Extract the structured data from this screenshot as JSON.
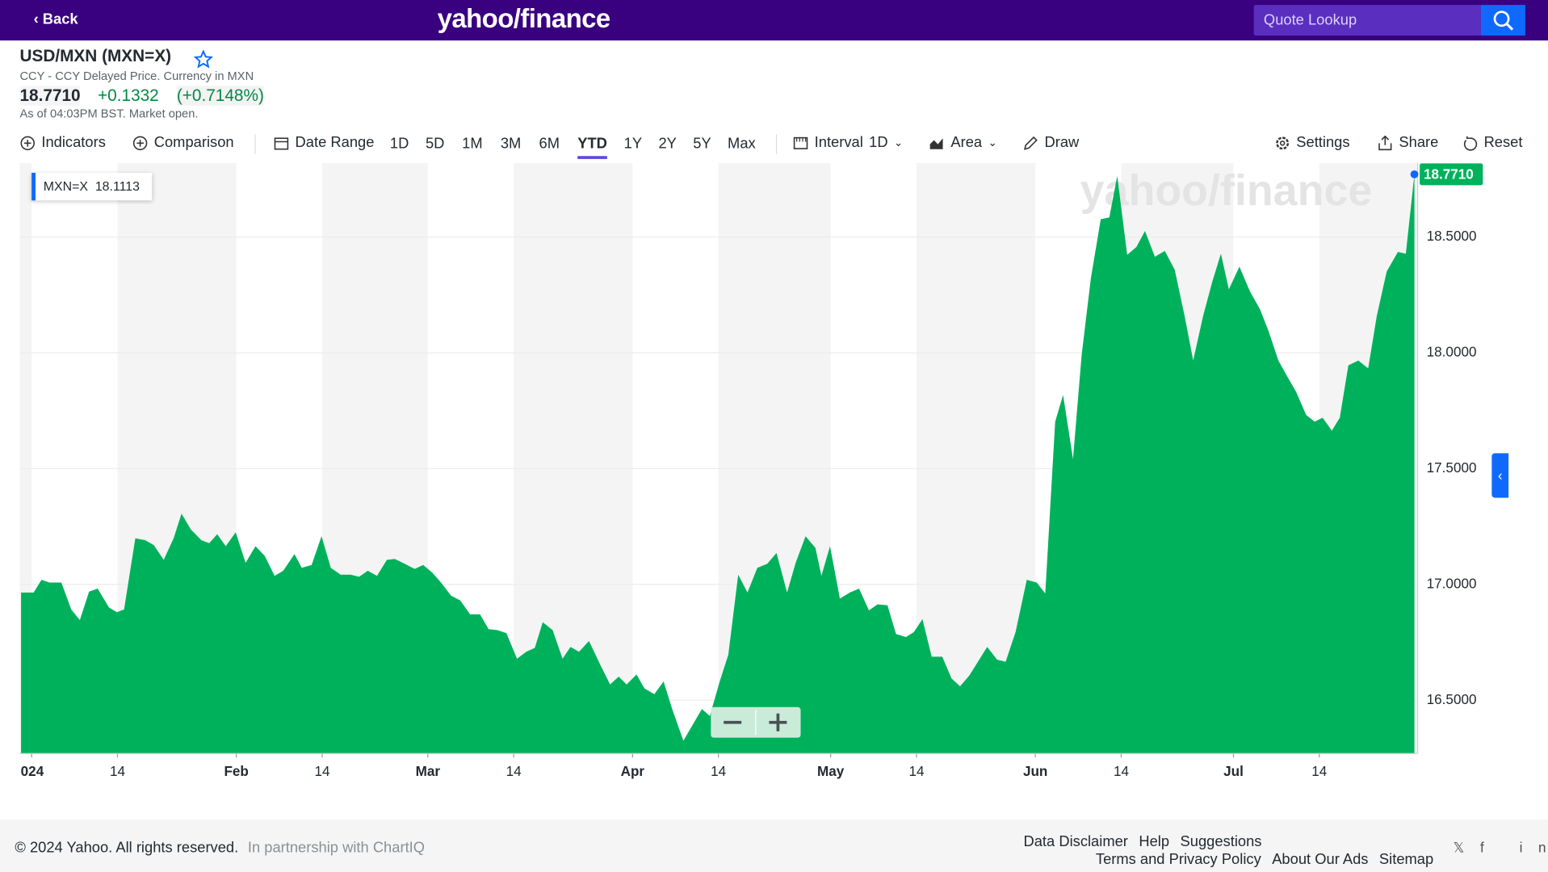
{
  "header": {
    "back": "Back",
    "logo": "yahoo/finance",
    "search_placeholder": "Quote Lookup"
  },
  "quote": {
    "name": "USD/MXN (MXN=X)",
    "subtitle": "CCY - CCY Delayed Price. Currency in MXN",
    "price": "18.7710",
    "change": "+0.1332",
    "change_percent": "(+0.7148%)",
    "as_of": "As of 04:03PM BST. Market open."
  },
  "toolbar": {
    "indicators": "Indicators",
    "comparison": "Comparison",
    "date_range": "Date Range",
    "ranges": [
      "1D",
      "5D",
      "1M",
      "3M",
      "6M",
      "YTD",
      "1Y",
      "2Y",
      "5Y",
      "Max"
    ],
    "interval": "Interval",
    "interval_value": "1D",
    "chart_type": "Area",
    "draw": "Draw",
    "settings": "Settings",
    "share": "Share",
    "reset": "Reset"
  },
  "chart_data": {
    "type": "area",
    "watermark": "yahoo/finance",
    "tooltip_name": "MXN=X",
    "tooltip_value": 18.1113,
    "last_price": {
      "value": 18.771,
      "label": "18.7710"
    },
    "xlim": [
      -0.8,
      210.9
    ],
    "xticks": [
      {
        "value": 1,
        "label": "024"
      },
      14,
      {
        "value": 32,
        "label": "Feb"
      },
      {
        "value": 45,
        "label": "14"
      },
      {
        "value": 61,
        "label": "Mar"
      },
      {
        "value": 74,
        "label": "14"
      },
      {
        "value": 92,
        "label": "Apr"
      },
      {
        "value": 105,
        "label": "14"
      },
      {
        "value": 122,
        "label": "May"
      },
      {
        "value": 135,
        "label": "14"
      },
      {
        "value": 153,
        "label": "Jun"
      },
      {
        "value": 166,
        "label": "14"
      },
      {
        "value": 183,
        "label": "Jul"
      },
      {
        "value": 196,
        "label": "14"
      }
    ],
    "ylim": [
      16.27,
      18.82
    ],
    "yticks": [
      {
        "value": 16.5,
        "label": "16.5000"
      },
      {
        "value": 17,
        "label": "17.0000"
      },
      {
        "value": 17.5,
        "label": "17.5000"
      },
      {
        "value": 18,
        "label": "18.0000"
      },
      {
        "value": 18.5,
        "label": "18.5000"
      }
    ],
    "grid": true,
    "series": [
      {
        "name": "MXN=X",
        "color": "#00b15c",
        "x": [
          -0.6,
          1.3,
          2.5,
          3.7,
          5.5,
          7.0,
          8.3,
          9.7,
          11.0,
          12.7,
          13.9,
          15.0,
          16.7,
          18.2,
          19.5,
          21.0,
          22.5,
          23.7,
          25.1,
          26.7,
          27.9,
          29.1,
          30.4,
          31.9,
          33.4,
          34.9,
          36.3,
          37.8,
          39.1,
          40.8,
          41.9,
          43.4,
          44.9,
          46.3,
          47.8,
          49.3,
          50.6,
          51.9,
          53.3,
          54.8,
          56.0,
          57.5,
          59.0,
          60.3,
          61.7,
          63.0,
          64.5,
          65.9,
          67.4,
          68.9,
          70.2,
          71.5,
          72.9,
          74.5,
          75.9,
          77.2,
          78.4,
          79.9,
          81.4,
          82.6,
          83.9,
          85.4,
          87.1,
          88.6,
          89.9,
          91.1,
          92.6,
          93.8,
          95.3,
          96.7,
          98.0,
          99.7,
          101.0,
          102.5,
          103.7,
          105.2,
          106.5,
          108.0,
          109.4,
          110.9,
          112.4,
          113.8,
          115.4,
          116.7,
          118.2,
          119.7,
          120.6,
          121.9,
          123.4,
          124.9,
          126.3,
          127.8,
          129.1,
          130.6,
          131.9,
          133.4,
          134.6,
          135.9,
          137.3,
          138.9,
          140.3,
          141.6,
          143.0,
          144.3,
          145.7,
          147.2,
          148.5,
          150.0,
          151.7,
          153.2,
          154.5,
          156.0,
          157.2,
          158.7,
          160.0,
          161.4,
          162.9,
          164.2,
          165.4,
          166.9,
          168.3,
          169.6,
          171.1,
          172.6,
          174.1,
          175.6,
          176.9,
          178.4,
          179.8,
          181.1,
          182.3,
          183.9,
          185.5,
          187.0,
          188.3,
          189.8,
          191.3,
          192.5,
          194.0,
          195.3,
          196.5,
          197.9,
          199.1,
          200.4,
          201.9,
          203.4,
          204.7,
          206.2,
          207.9,
          209.1,
          210.4
        ],
        "values": [
          16.965,
          16.965,
          17.02,
          17.008,
          17.008,
          16.892,
          16.846,
          16.969,
          16.982,
          16.901,
          16.88,
          16.892,
          17.199,
          17.191,
          17.17,
          17.106,
          17.199,
          17.306,
          17.238,
          17.191,
          17.178,
          17.217,
          17.165,
          17.225,
          17.093,
          17.165,
          17.123,
          17.037,
          17.059,
          17.131,
          17.072,
          17.084,
          17.208,
          17.072,
          17.042,
          17.042,
          17.033,
          17.059,
          17.037,
          17.106,
          17.11,
          17.089,
          17.067,
          17.084,
          17.05,
          17.008,
          16.952,
          16.931,
          16.871,
          16.871,
          16.807,
          16.803,
          16.79,
          16.679,
          16.709,
          16.726,
          16.837,
          16.803,
          16.679,
          16.73,
          16.709,
          16.756,
          16.654,
          16.568,
          16.602,
          16.568,
          16.611,
          16.551,
          16.526,
          16.581,
          16.462,
          16.325,
          16.389,
          16.462,
          16.432,
          16.581,
          16.696,
          17.042,
          16.965,
          17.072,
          17.089,
          17.136,
          16.965,
          17.093,
          17.208,
          17.157,
          17.037,
          17.165,
          16.939,
          16.965,
          16.982,
          16.888,
          16.914,
          16.91,
          16.786,
          16.773,
          16.794,
          16.85,
          16.688,
          16.688,
          16.594,
          16.56,
          16.607,
          16.666,
          16.73,
          16.675,
          16.666,
          16.794,
          17.02,
          17.008,
          16.961,
          17.703,
          17.818,
          17.541,
          17.988,
          18.321,
          18.577,
          18.585,
          18.764,
          18.423,
          18.457,
          18.526,
          18.415,
          18.44,
          18.359,
          18.159,
          17.967,
          18.159,
          18.308,
          18.428,
          18.274,
          18.372,
          18.265,
          18.189,
          18.095,
          17.967,
          17.89,
          17.831,
          17.732,
          17.703,
          17.72,
          17.664,
          17.72,
          17.946,
          17.967,
          17.933,
          18.159,
          18.351,
          18.436,
          18.428,
          18.771
        ]
      }
    ]
  },
  "footer": {
    "copyright": "© 2024 Yahoo. All rights reserved.",
    "partner": "In partnership with ChartIQ",
    "links": [
      "Data Disclaimer",
      "Help",
      "Suggestions"
    ],
    "links2": [
      "Terms and Privacy Policy",
      "About Our Ads",
      "Sitemap"
    ]
  }
}
